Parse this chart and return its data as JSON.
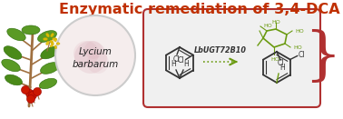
{
  "title": "Enzymatic remediation of 3,4-DCA",
  "title_color": "#c03000",
  "title_fontsize": 11.5,
  "bg_color": "#ffffff",
  "reaction_box_color": "#f0f0f0",
  "reaction_box_border": "#b03030",
  "plant_circle_color": "#f5eded",
  "plant_text": "Lycium\nbarbarum",
  "enzyme_label": "LbUGT72B10",
  "arrow_color": "#6a9a10",
  "mol_color": "#333333",
  "sugar_color": "#6a9a10",
  "bracket_color": "#b03030",
  "figsize": [
    3.78,
    1.31
  ],
  "dpi": 100
}
